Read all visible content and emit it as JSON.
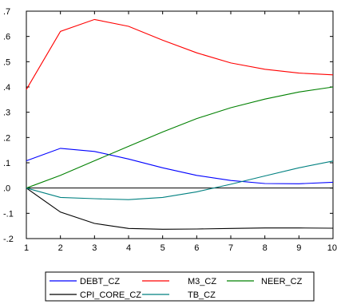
{
  "chart_data": {
    "type": "line",
    "x": [
      1,
      2,
      3,
      4,
      5,
      6,
      7,
      8,
      9,
      10
    ],
    "xlim": [
      1,
      10
    ],
    "ylim": [
      -0.2,
      0.7
    ],
    "xticks": [
      "1",
      "2",
      "3",
      "4",
      "5",
      "6",
      "7",
      "8",
      "9",
      "10"
    ],
    "yticks": [
      {
        "value": -0.2,
        "label": "-.2"
      },
      {
        "value": -0.1,
        "label": "-.1"
      },
      {
        "value": 0.0,
        "label": ".0"
      },
      {
        "value": 0.1,
        "label": ".1"
      },
      {
        "value": 0.2,
        "label": ".2"
      },
      {
        "value": 0.3,
        "label": ".3"
      },
      {
        "value": 0.4,
        "label": ".4"
      },
      {
        "value": 0.5,
        "label": ".5"
      },
      {
        "value": 0.6,
        "label": ".6"
      },
      {
        "value": 0.7,
        "label": ".7"
      }
    ],
    "zero_line": true,
    "grid": false,
    "legend_position": "bottom",
    "series": [
      {
        "name": "DEBT_CZ",
        "color": "#0000ff",
        "values": [
          0.108,
          0.157,
          0.145,
          0.115,
          0.08,
          0.05,
          0.03,
          0.018,
          0.017,
          0.023
        ]
      },
      {
        "name": "M3_CZ",
        "color": "#ff0000",
        "values": [
          0.39,
          0.62,
          0.667,
          0.64,
          0.585,
          0.535,
          0.495,
          0.47,
          0.455,
          0.448
        ]
      },
      {
        "name": "NEER_CZ",
        "color": "#008000",
        "values": [
          0.0,
          0.05,
          0.108,
          0.165,
          0.222,
          0.275,
          0.318,
          0.352,
          0.38,
          0.4
        ]
      },
      {
        "name": "CPI_CORE_CZ",
        "color": "#000000",
        "values": [
          0.0,
          -0.095,
          -0.14,
          -0.16,
          -0.163,
          -0.162,
          -0.16,
          -0.158,
          -0.158,
          -0.159
        ]
      },
      {
        "name": "TB_CZ",
        "color": "#008080",
        "values": [
          0.0,
          -0.037,
          -0.042,
          -0.046,
          -0.037,
          -0.015,
          0.015,
          0.048,
          0.08,
          0.107
        ]
      }
    ]
  }
}
